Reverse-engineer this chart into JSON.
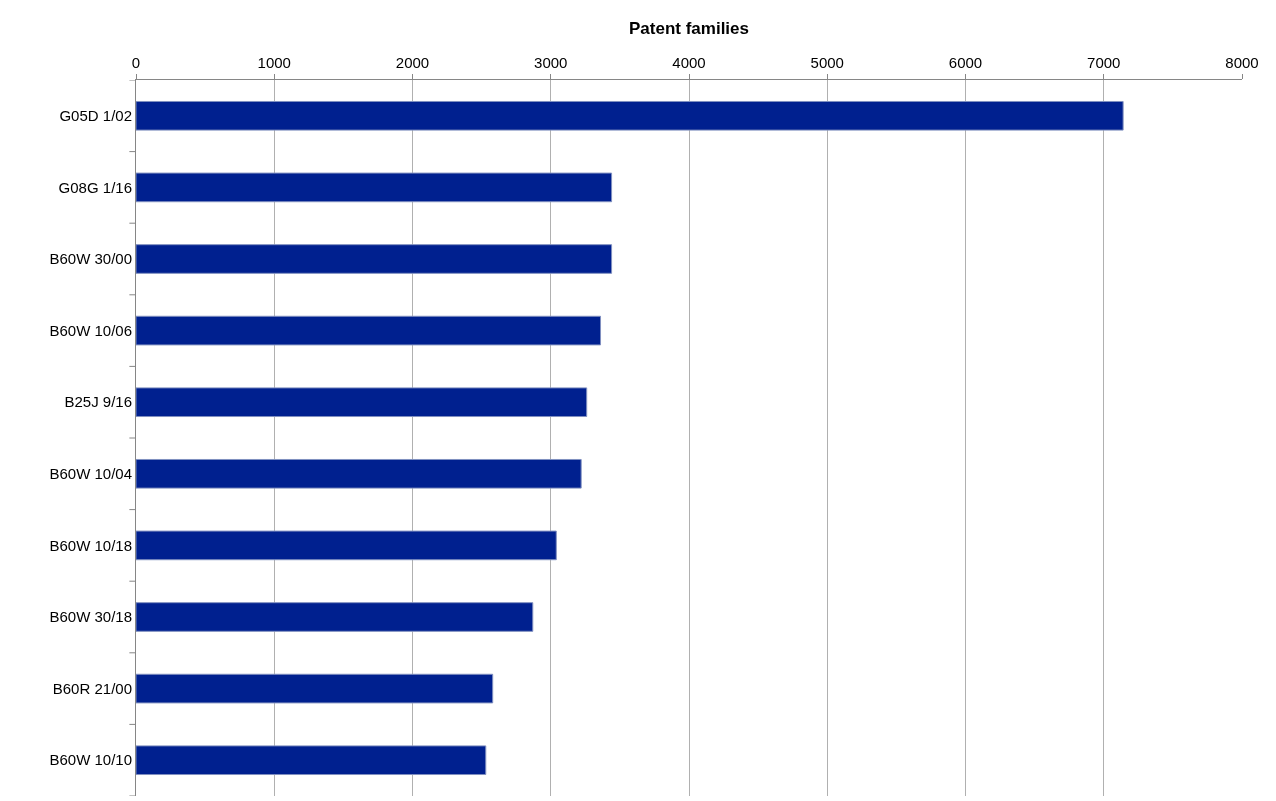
{
  "chart_data": {
    "type": "bar",
    "orientation": "horizontal",
    "xlabel": "Patent families",
    "categories": [
      "G05D 1/02",
      "G08G 1/16",
      "B60W 30/00",
      "B60W 10/06",
      "B25J 9/16",
      "B60W 10/04",
      "B60W 10/18",
      "B60W 30/18",
      "B60R 21/00",
      "B60W 10/10"
    ],
    "values": [
      7140,
      3440,
      3440,
      3360,
      3260,
      3220,
      3040,
      2870,
      2580,
      2530
    ],
    "color": "#00208f",
    "xlim": [
      0,
      8000
    ],
    "xticks": [
      0,
      1000,
      2000,
      3000,
      4000,
      5000,
      6000,
      7000,
      8000
    ],
    "grid": "x"
  }
}
